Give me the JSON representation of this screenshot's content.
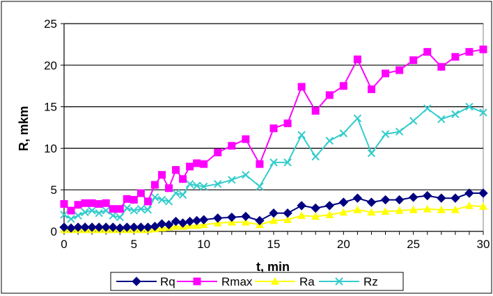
{
  "chart_data": {
    "type": "line",
    "title": "",
    "xlabel": "t, min",
    "ylabel": "R, mkm",
    "xlim": [
      0,
      30
    ],
    "ylim": [
      0,
      25
    ],
    "x_ticks": [
      "0",
      "5",
      "10",
      "15",
      "20",
      "25",
      "30"
    ],
    "y_ticks": [
      "0",
      "5",
      "10",
      "15",
      "20",
      "25"
    ],
    "grid": "horizontal",
    "legend_position": "bottom",
    "series": [
      {
        "name": "Rq",
        "color": "#000080",
        "marker": "diamond",
        "x": [
          0,
          0.5,
          1,
          1.5,
          2,
          2.5,
          3,
          3.5,
          4,
          4.5,
          5,
          5.5,
          6,
          6.5,
          7,
          7.5,
          8,
          8.5,
          9,
          9.5,
          10,
          11,
          12,
          13,
          14,
          15,
          16,
          17,
          18,
          19,
          20,
          21,
          22,
          23,
          24,
          25,
          26,
          27,
          28,
          29,
          30
        ],
        "y": [
          0.5,
          0.4,
          0.5,
          0.5,
          0.5,
          0.5,
          0.5,
          0.5,
          0.4,
          0.5,
          0.5,
          0.5,
          0.5,
          0.6,
          0.9,
          0.8,
          1.2,
          1.0,
          1.2,
          1.3,
          1.4,
          1.6,
          1.7,
          1.8,
          1.3,
          2.2,
          2.2,
          3.1,
          2.8,
          3.1,
          3.5,
          4.0,
          3.5,
          3.8,
          3.8,
          4.1,
          4.3,
          4.0,
          4.0,
          4.6,
          4.6
        ]
      },
      {
        "name": "Rmax",
        "color": "#ff00ff",
        "marker": "square",
        "x": [
          0,
          0.5,
          1,
          1.5,
          2,
          2.5,
          3,
          3.5,
          4,
          4.5,
          5,
          5.5,
          6,
          6.5,
          7,
          7.5,
          8,
          8.5,
          9,
          9.5,
          10,
          11,
          12,
          13,
          14,
          15,
          16,
          17,
          18,
          19,
          20,
          21,
          22,
          23,
          24,
          25,
          26,
          27,
          28,
          29,
          30
        ],
        "y": [
          3.3,
          2.5,
          3.2,
          3.4,
          3.4,
          3.3,
          3.4,
          2.7,
          2.7,
          3.9,
          3.8,
          4.6,
          3.6,
          5.6,
          6.8,
          5.2,
          7.4,
          6.3,
          7.8,
          8.2,
          8.1,
          9.5,
          10.3,
          11.1,
          8.1,
          12.4,
          13.0,
          17.4,
          14.5,
          16.4,
          17.5,
          20.7,
          17.1,
          19.0,
          19.4,
          20.6,
          21.6,
          19.8,
          21.0,
          21.6,
          21.9
        ]
      },
      {
        "name": "Ra",
        "color": "#ffff00",
        "marker": "triangle",
        "x": [
          0,
          0.5,
          1,
          1.5,
          2,
          2.5,
          3,
          3.5,
          4,
          4.5,
          5,
          5.5,
          6,
          6.5,
          7,
          7.5,
          8,
          8.5,
          9,
          9.5,
          10,
          11,
          12,
          13,
          14,
          15,
          16,
          17,
          18,
          19,
          20,
          21,
          22,
          23,
          24,
          25,
          26,
          27,
          28,
          29,
          30
        ],
        "y": [
          0.2,
          0.2,
          0.2,
          0.2,
          0.2,
          0.2,
          0.2,
          0.2,
          0.2,
          0.2,
          0.2,
          0.2,
          0.2,
          0.3,
          0.4,
          0.5,
          0.6,
          0.6,
          0.7,
          0.7,
          0.8,
          1.0,
          1.1,
          1.1,
          0.8,
          1.3,
          1.4,
          1.9,
          1.8,
          2.0,
          2.3,
          2.6,
          2.3,
          2.4,
          2.5,
          2.6,
          2.7,
          2.6,
          2.6,
          3.1,
          3.0
        ]
      },
      {
        "name": "Rz",
        "color": "#33cccc",
        "marker": "x",
        "x": [
          0,
          0.5,
          1,
          1.5,
          2,
          2.5,
          3,
          3.5,
          4,
          4.5,
          5,
          5.5,
          6,
          6.5,
          7,
          7.5,
          8,
          8.5,
          9,
          9.5,
          10,
          11,
          12,
          13,
          14,
          15,
          16,
          17,
          18,
          19,
          20,
          21,
          22,
          23,
          24,
          25,
          26,
          27,
          28,
          29,
          30
        ],
        "y": [
          2.0,
          1.5,
          1.9,
          2.3,
          2.5,
          2.2,
          2.5,
          1.9,
          1.7,
          2.8,
          2.5,
          2.7,
          2.6,
          4.1,
          3.8,
          3.6,
          4.6,
          4.4,
          5.7,
          5.5,
          5.4,
          5.7,
          6.2,
          6.8,
          5.4,
          8.3,
          8.3,
          11.6,
          9.0,
          10.9,
          11.8,
          13.6,
          9.4,
          11.7,
          12.0,
          13.3,
          14.8,
          13.5,
          14.1,
          15.0,
          14.3
        ]
      }
    ]
  }
}
